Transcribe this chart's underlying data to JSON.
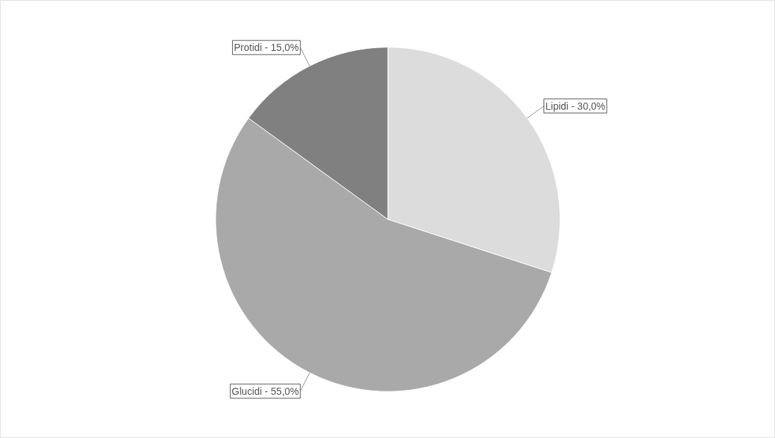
{
  "chart_data": {
    "type": "pie",
    "categories": [
      "Lipidi",
      "Glucidi",
      "Protidi"
    ],
    "values": [
      30,
      55,
      15
    ],
    "colors": [
      "#dcdcdc",
      "#a9a9a9",
      "#808080"
    ],
    "value_labels": [
      "30,0%",
      "55,0%",
      "15,0%"
    ]
  }
}
